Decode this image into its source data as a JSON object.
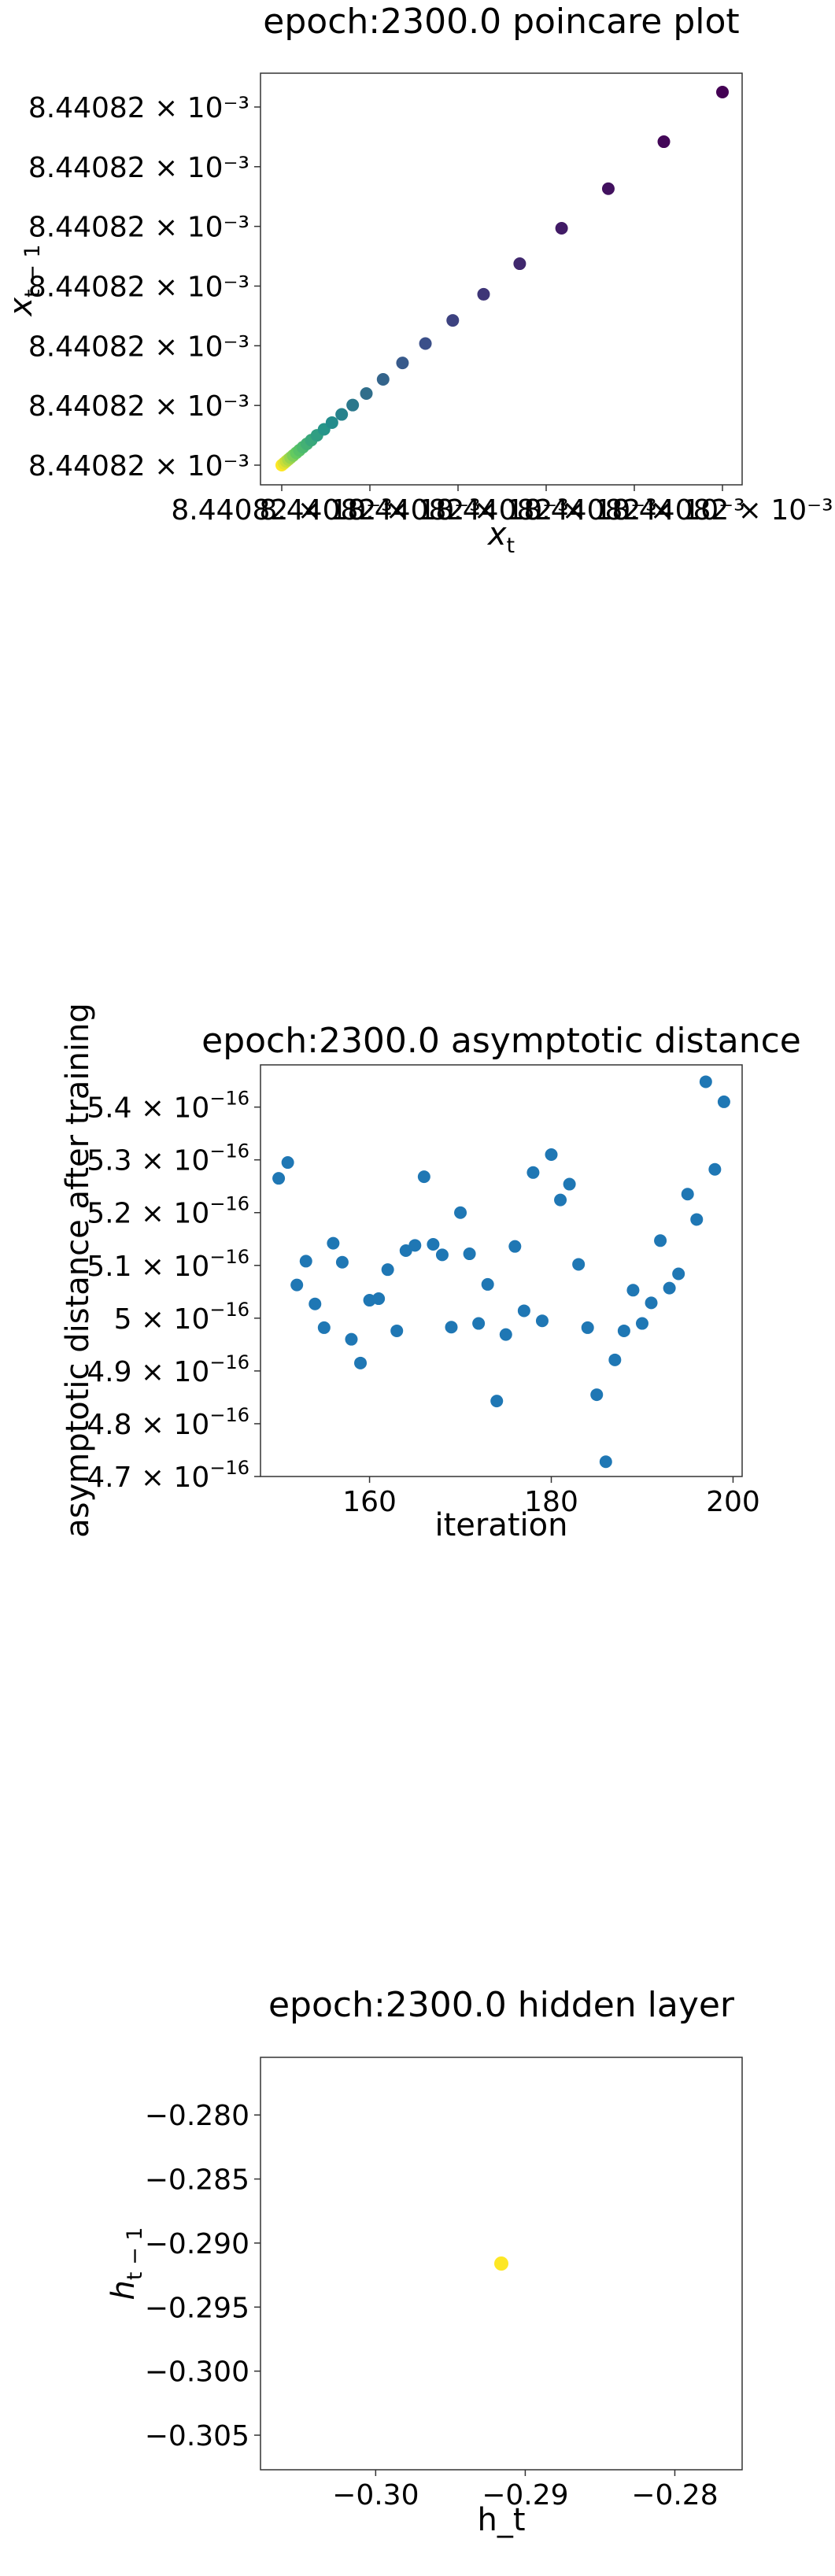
{
  "chart_data": [
    {
      "type": "scatter",
      "title": "epoch:2300.0 poincare plot",
      "xlabel": "x_t",
      "ylabel": "x_{t-1}",
      "xlim": [
        0,
        1
      ],
      "ylim": [
        0,
        1
      ],
      "grid": false,
      "colormap": "viridis",
      "x_tick_labels": [
        "8.44082 × 10⁻³",
        "8.44082 × 10⁻³",
        "8.44082 × 10⁻³",
        "8.44082 × 10⁻³",
        "8.44082 × 10⁻³",
        "8.44082 × 10⁻³"
      ],
      "y_tick_labels": [
        "8.44082 × 10⁻³",
        "8.44082 × 10⁻³",
        "8.44082 × 10⁻³",
        "8.44082 × 10⁻³",
        "8.44082 × 10⁻³",
        "8.44082 × 10⁻³",
        "8.44082 × 10⁻³"
      ],
      "points": {
        "x": [
          0.0,
          0.005,
          0.01,
          0.015,
          0.02,
          0.026,
          0.033,
          0.04,
          0.048,
          0.057,
          0.067,
          0.08,
          0.096,
          0.114,
          0.136,
          0.161,
          0.192,
          0.23,
          0.274,
          0.326,
          0.388,
          0.458,
          0.54,
          0.635,
          0.741,
          0.867,
          1.0
        ],
        "y": [
          0.0,
          0.005,
          0.01,
          0.015,
          0.02,
          0.026,
          0.033,
          0.04,
          0.048,
          0.057,
          0.067,
          0.08,
          0.096,
          0.114,
          0.136,
          0.161,
          0.192,
          0.23,
          0.274,
          0.326,
          0.388,
          0.458,
          0.54,
          0.635,
          0.741,
          0.867,
          1.0
        ],
        "color_values": [
          1.0,
          0.96,
          0.92,
          0.88,
          0.84,
          0.8,
          0.76,
          0.72,
          0.68,
          0.64,
          0.6,
          0.56,
          0.52,
          0.48,
          0.44,
          0.4,
          0.36,
          0.32,
          0.28,
          0.24,
          0.2,
          0.16,
          0.12,
          0.08,
          0.05,
          0.02,
          0.0
        ]
      }
    },
    {
      "type": "scatter",
      "title": "epoch:2300.0 asymptotic distance",
      "xlabel": "iteration",
      "ylabel": "asymptotic distance after training",
      "xlim": [
        148,
        201
      ],
      "ylim": [
        4.7e-16,
        5.48e-16
      ],
      "x_ticks": [
        160,
        180,
        200
      ],
      "y_ticks": [
        4.7e-16,
        4.8e-16,
        4.9e-16,
        5e-16,
        5.1e-16,
        5.2e-16,
        5.3e-16,
        5.4e-16
      ],
      "y_tick_mantissas": [
        "4.7",
        "4.8",
        "4.9",
        "5",
        "5.1",
        "5.2",
        "5.3",
        "5.4"
      ],
      "y_tick_exponent": "−16",
      "grid": false,
      "color": "#1f77b4",
      "x": [
        150,
        151,
        152,
        153,
        154,
        155,
        156,
        157,
        158,
        159,
        160,
        161,
        162,
        163,
        164,
        165,
        166,
        167,
        168,
        169,
        170,
        171,
        172,
        173,
        174,
        175,
        176,
        177,
        178,
        179,
        180,
        181,
        182,
        183,
        184,
        185,
        186,
        187,
        188,
        189,
        190,
        191,
        192,
        193,
        194,
        195,
        196,
        197,
        198,
        199
      ],
      "y": [
        5.265e-16,
        5.295e-16,
        5.063e-16,
        5.108e-16,
        5.027e-16,
        4.982e-16,
        5.142e-16,
        5.106e-16,
        4.96e-16,
        4.915e-16,
        5.034e-16,
        5.037e-16,
        5.092e-16,
        4.976e-16,
        5.128e-16,
        5.138e-16,
        5.268e-16,
        5.14e-16,
        5.12e-16,
        4.983e-16,
        5.2e-16,
        5.122e-16,
        4.99e-16,
        5.064e-16,
        4.843e-16,
        4.969e-16,
        5.136e-16,
        5.014e-16,
        5.276e-16,
        4.995e-16,
        5.31e-16,
        5.224e-16,
        5.254e-16,
        5.102e-16,
        4.982e-16,
        4.855e-16,
        4.728e-16,
        4.921e-16,
        4.976e-16,
        5.053e-16,
        4.99e-16,
        5.029e-16,
        5.147e-16,
        5.057e-16,
        5.084e-16,
        5.235e-16,
        5.187e-16,
        5.448e-16,
        5.282e-16,
        5.41e-16
      ]
    },
    {
      "type": "scatter",
      "title": "epoch:2300.0 hidden layer",
      "xlabel": "h_t",
      "ylabel": "h_{t-1}",
      "xlim": [
        -0.3077,
        -0.2755
      ],
      "ylim": [
        -0.3077,
        -0.2755
      ],
      "x_ticks": [
        -0.3,
        -0.29,
        -0.28
      ],
      "x_tick_labels": [
        "−0.30",
        "−0.29",
        "−0.28"
      ],
      "y_ticks": [
        -0.28,
        -0.285,
        -0.29,
        -0.295,
        -0.3,
        -0.305
      ],
      "y_tick_labels": [
        "−0.280",
        "−0.285",
        "−0.290",
        "−0.295",
        "−0.300",
        "−0.305"
      ],
      "grid": false,
      "color": "#fde725",
      "x": [
        -0.2916
      ],
      "y": [
        -0.2916
      ]
    }
  ]
}
